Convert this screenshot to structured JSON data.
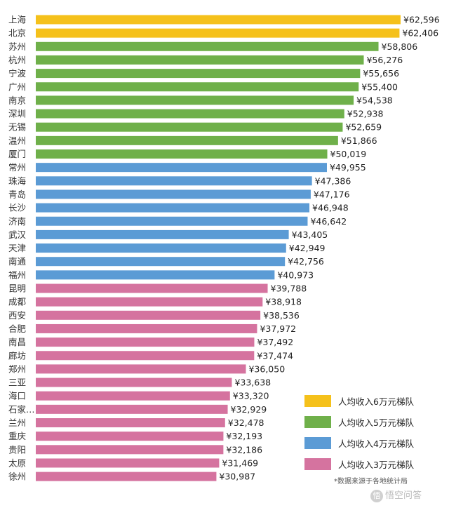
{
  "chart_data": {
    "type": "bar",
    "orientation": "horizontal",
    "categories": [
      "上海",
      "北京",
      "苏州",
      "杭州",
      "宁波",
      "广州",
      "南京",
      "深圳",
      "无锡",
      "温州",
      "厦门",
      "常州",
      "珠海",
      "青岛",
      "长沙",
      "济南",
      "武汉",
      "天津",
      "南通",
      "福州",
      "昆明",
      "成都",
      "西安",
      "合肥",
      "南昌",
      "廊坊",
      "郑州",
      "三亚",
      "海口",
      "石家…",
      "兰州",
      "重庆",
      "贵阳",
      "太原",
      "徐州"
    ],
    "values": [
      62596,
      62406,
      58806,
      56276,
      55656,
      55400,
      54538,
      52938,
      52659,
      51866,
      50019,
      49955,
      47386,
      47176,
      46948,
      46642,
      43405,
      42949,
      42756,
      40973,
      39788,
      38918,
      38536,
      37972,
      37492,
      37474,
      36050,
      33638,
      33320,
      32929,
      32478,
      32193,
      32186,
      31469,
      30987
    ],
    "value_labels": [
      "¥62,596",
      "¥62,406",
      "¥58,806",
      "¥56,276",
      "¥55,656",
      "¥55,400",
      "¥54,538",
      "¥52,938",
      "¥52,659",
      "¥51,866",
      "¥50,019",
      "¥49,955",
      "¥47,386",
      "¥47,176",
      "¥46,948",
      "¥46,642",
      "¥43,405",
      "¥42,949",
      "¥42,756",
      "¥40,973",
      "¥39,788",
      "¥38,918",
      "¥38,536",
      "¥37,972",
      "¥37,492",
      "¥37,474",
      "¥36,050",
      "¥33,638",
      "¥33,320",
      "¥32,929",
      "¥32,478",
      "¥32,193",
      "¥32,186",
      "¥31,469",
      "¥30,987"
    ],
    "tiers": [
      0,
      0,
      1,
      1,
      1,
      1,
      1,
      1,
      1,
      1,
      1,
      2,
      2,
      2,
      2,
      2,
      2,
      2,
      2,
      2,
      3,
      3,
      3,
      3,
      3,
      3,
      3,
      3,
      3,
      3,
      3,
      3,
      3,
      3,
      3
    ],
    "xlim": [
      0,
      62596
    ],
    "grid": false,
    "legend_position": "bottom-right",
    "legend": [
      {
        "label": "人均收入6万元梯队",
        "color": "#f5c11b"
      },
      {
        "label": "人均收入5万元梯队",
        "color": "#6fb04a"
      },
      {
        "label": "人均收入4万元梯队",
        "color": "#5b9bd5"
      },
      {
        "label": "人均收入3万元梯队",
        "color": "#d5739f"
      }
    ]
  },
  "source_note": "*数据来源于各地统计局",
  "watermark": {
    "badge": "悟",
    "text": "悟空问答"
  }
}
